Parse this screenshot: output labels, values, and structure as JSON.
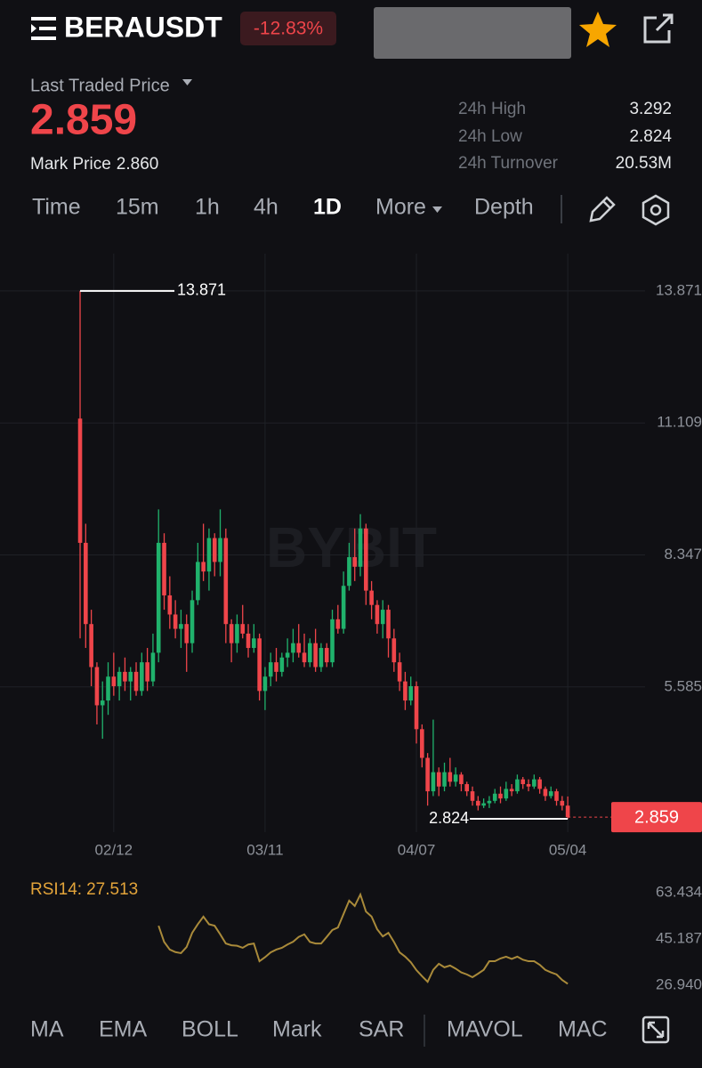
{
  "header": {
    "symbol": "BERAUSDT",
    "change": "-12.83%",
    "last_price_label": "Last Traded Price",
    "last_price": "2.859",
    "mark_price_label": "Mark Price",
    "mark_price": "2.860",
    "stats": [
      {
        "label": "24h High",
        "value": "3.292"
      },
      {
        "label": "24h Low",
        "value": "2.824"
      },
      {
        "label": "24h Turnover",
        "value": "20.53M"
      }
    ]
  },
  "timeframes": [
    "Time",
    "15m",
    "1h",
    "4h",
    "1D",
    "More",
    "Depth"
  ],
  "watermark": "BYBIT",
  "indicators": [
    "MA",
    "EMA",
    "BOLL",
    "Mark",
    "SAR",
    "MAVOL",
    "MAC"
  ],
  "chart_data": [
    {
      "type": "candlestick",
      "up_color": "#20b26c",
      "down_color": "#ef454a",
      "open": [
        11.2,
        8.6,
        6.9,
        6.0,
        5.2,
        5.3,
        5.8,
        5.6,
        5.9,
        5.7,
        5.9,
        5.5,
        6.1,
        5.7,
        6.3,
        8.6,
        7.5,
        7.1,
        6.8,
        6.9,
        6.5,
        7.4,
        8.2,
        8.0,
        8.7,
        8.2,
        8.7,
        6.9,
        6.5,
        6.9,
        6.7,
        6.4,
        6.6,
        5.5,
        5.8,
        6.1,
        5.9,
        6.2,
        6.3,
        6.5,
        6.3,
        6.1,
        6.5,
        6.0,
        6.4,
        6.1,
        7.0,
        6.8,
        7.7,
        8.3,
        8.1,
        8.9,
        7.6,
        7.3,
        6.9,
        7.2,
        6.6,
        6.1,
        5.7,
        5.3,
        5.6,
        4.7,
        4.1,
        3.4,
        3.8,
        3.5,
        3.8,
        3.6,
        3.75,
        3.55,
        3.4,
        3.2,
        3.1,
        3.15,
        3.2,
        3.35,
        3.25,
        3.45,
        3.4,
        3.65,
        3.55,
        3.5,
        3.65,
        3.45,
        3.3,
        3.4,
        3.2,
        3.1
      ],
      "high": [
        13.871,
        9.0,
        7.2,
        6.1,
        5.7,
        6.1,
        6.3,
        6.0,
        6.2,
        6.0,
        6.1,
        6.3,
        6.4,
        6.7,
        9.3,
        8.8,
        7.9,
        7.4,
        7.2,
        7.1,
        7.6,
        8.6,
        9.0,
        8.9,
        8.8,
        9.3,
        8.9,
        7.0,
        7.1,
        7.3,
        6.9,
        6.9,
        6.7,
        6.0,
        6.3,
        6.4,
        6.3,
        6.6,
        6.8,
        6.9,
        6.7,
        6.6,
        6.8,
        6.5,
        6.5,
        7.2,
        7.3,
        8.0,
        8.6,
        8.9,
        9.2,
        9.0,
        7.8,
        7.4,
        7.4,
        7.3,
        6.8,
        6.3,
        5.9,
        5.8,
        5.7,
        4.8,
        4.2,
        4.9,
        3.9,
        4.0,
        4.1,
        3.9,
        3.8,
        3.6,
        3.5,
        3.3,
        3.25,
        3.3,
        3.45,
        3.5,
        3.6,
        3.55,
        3.75,
        3.7,
        3.65,
        3.75,
        3.7,
        3.5,
        3.5,
        3.45,
        3.3,
        3.292
      ],
      "low": [
        6.6,
        6.4,
        5.6,
        4.8,
        4.5,
        5.0,
        5.4,
        5.3,
        5.5,
        5.3,
        5.4,
        5.4,
        5.5,
        5.6,
        6.1,
        7.2,
        6.8,
        6.6,
        6.4,
        5.9,
        6.3,
        7.3,
        7.8,
        7.6,
        7.9,
        7.9,
        6.5,
        6.1,
        6.3,
        6.6,
        6.2,
        6.3,
        5.3,
        5.1,
        5.6,
        5.7,
        5.8,
        6.0,
        6.1,
        6.2,
        6.0,
        6.0,
        5.9,
        5.9,
        6.0,
        6.0,
        6.7,
        6.7,
        7.6,
        7.8,
        7.9,
        7.3,
        7.0,
        6.7,
        6.6,
        6.2,
        5.9,
        5.5,
        5.1,
        5.2,
        4.4,
        3.9,
        3.1,
        3.3,
        3.3,
        3.4,
        3.5,
        3.5,
        3.4,
        3.3,
        3.1,
        3.0,
        3.05,
        3.05,
        3.15,
        3.15,
        3.2,
        3.3,
        3.35,
        3.45,
        3.4,
        3.45,
        3.35,
        3.2,
        3.25,
        3.1,
        3.0,
        2.824
      ],
      "close": [
        8.6,
        6.9,
        6.0,
        5.2,
        5.3,
        5.8,
        5.6,
        5.9,
        5.7,
        5.9,
        5.5,
        6.1,
        5.7,
        6.3,
        8.6,
        7.5,
        7.1,
        6.8,
        6.9,
        6.5,
        7.4,
        8.2,
        8.0,
        8.7,
        8.2,
        8.7,
        6.9,
        6.5,
        6.9,
        6.7,
        6.4,
        6.6,
        5.5,
        5.8,
        6.1,
        5.9,
        6.2,
        6.3,
        6.5,
        6.3,
        6.1,
        6.5,
        6.0,
        6.4,
        6.1,
        7.0,
        6.8,
        7.7,
        8.3,
        8.1,
        8.9,
        7.6,
        7.3,
        6.9,
        7.2,
        6.6,
        6.1,
        5.7,
        5.3,
        5.6,
        4.7,
        4.1,
        3.4,
        3.8,
        3.5,
        3.8,
        3.6,
        3.75,
        3.55,
        3.4,
        3.2,
        3.1,
        3.15,
        3.2,
        3.35,
        3.25,
        3.45,
        3.4,
        3.65,
        3.55,
        3.5,
        3.65,
        3.45,
        3.3,
        3.4,
        3.2,
        3.1,
        2.859
      ],
      "xlim": [
        -14.29,
        110.95
      ],
      "ylim": [
        2.545,
        14.652
      ],
      "xticks": [
        {
          "value": 6,
          "label": "02/12"
        },
        {
          "value": 33,
          "label": "03/11"
        },
        {
          "value": 60,
          "label": "04/07"
        },
        {
          "value": 87,
          "label": "05/04"
        }
      ],
      "yticks": [
        5.585,
        8.347,
        11.109,
        13.871
      ],
      "grid": true
    },
    {
      "type": "line",
      "label": "RSI14:",
      "color": "#a98a3a",
      "values": [
        null,
        null,
        null,
        null,
        null,
        null,
        null,
        null,
        null,
        null,
        null,
        null,
        null,
        null,
        50.4,
        44,
        41,
        40,
        39.6,
        42,
        47.6,
        51,
        54,
        51,
        50.4,
        47,
        43.4,
        42.7,
        42.5,
        41.7,
        43,
        43.4,
        36.4,
        38,
        39.9,
        41,
        41.7,
        43,
        44.1,
        46,
        47,
        44,
        43.4,
        43.4,
        46,
        48.7,
        49.7,
        55,
        60.3,
        58.2,
        62.7,
        56,
        54,
        49,
        46.2,
        47.6,
        44,
        39.9,
        38.2,
        36,
        32.9,
        30.5,
        28.3,
        33,
        35.4,
        34,
        34.7,
        33.5,
        32,
        31.2,
        30.1,
        31.5,
        33,
        36.4,
        36.4,
        37.5,
        38.2,
        37.3,
        38.2,
        37,
        36.4,
        36.4,
        35,
        33,
        32,
        31.2,
        29,
        27.513
      ],
      "xlim": [
        -14.29,
        110.95
      ],
      "ylim": [
        22.38,
        67.996
      ],
      "yticks": [
        {
          "value": 26.94,
          "label": "26.940"
        },
        45.187,
        63.434
      ]
    }
  ]
}
